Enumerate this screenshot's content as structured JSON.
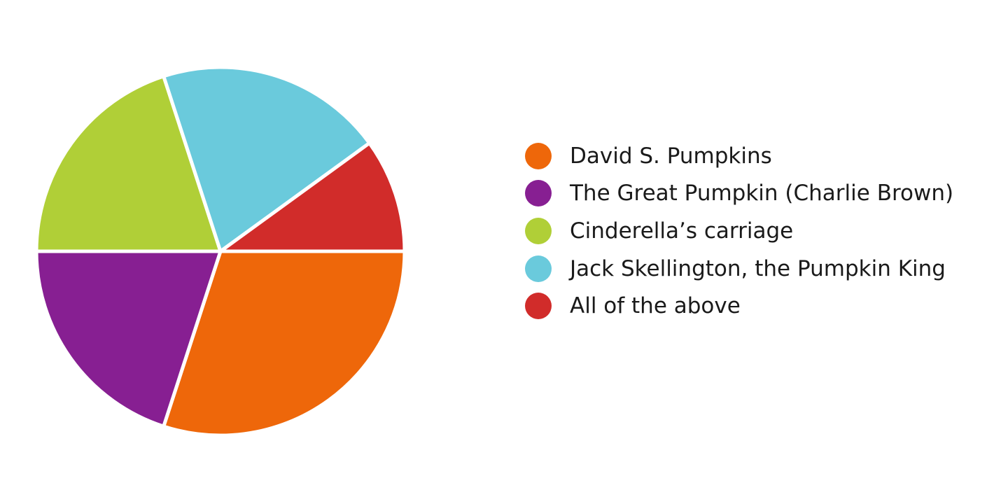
{
  "chart_data": {
    "type": "pie",
    "title": "",
    "start_angle_deg": 0,
    "direction": "clockwise",
    "legend_position": "right",
    "slices": [
      {
        "label": "David S. Pumpkins",
        "value": 30,
        "color": "#ee670a"
      },
      {
        "label": "The Great Pumpkin (Charlie Brown)",
        "value": 20,
        "color": "#871f92"
      },
      {
        "label": "Cinderella’s carriage",
        "value": 20,
        "color": "#b0cf37"
      },
      {
        "label": "Jack Skellington, the Pumpkin King",
        "value": 20,
        "color": "#6acadc"
      },
      {
        "label": "All of the above",
        "value": 10,
        "color": "#d12c2a"
      }
    ]
  }
}
